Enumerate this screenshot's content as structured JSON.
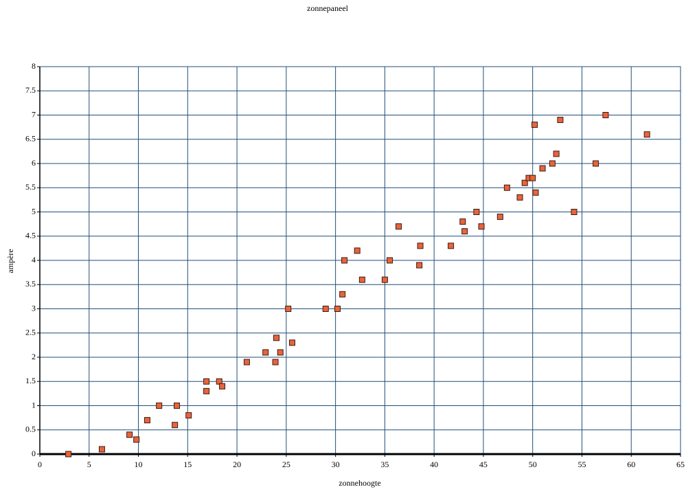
{
  "chart_data": {
    "type": "scatter",
    "title": "zonnepaneel",
    "x_label": "zonnehoogte",
    "y_label": "ampère",
    "series": [
      {
        "name": "ampère",
        "color": "#e8643c",
        "x": [
          2.9,
          6.3,
          9.1,
          9.8,
          10.9,
          12.1,
          13.9,
          13.7,
          15.1,
          16.9,
          16.9,
          18.2,
          18.5,
          21.0,
          22.9,
          23.9,
          24.0,
          24.4,
          25.2,
          25.6,
          29.0,
          30.2,
          30.7,
          30.9,
          32.2,
          32.7,
          35.0,
          35.5,
          36.4,
          38.5,
          38.6,
          41.7,
          42.9,
          43.1,
          44.3,
          44.8,
          46.7,
          47.4,
          48.7,
          49.2,
          49.6,
          50.0,
          50.2,
          50.3,
          51.0,
          52.0,
          52.4,
          52.8,
          54.2,
          56.4,
          57.4,
          61.6
        ],
        "values": [
          0,
          0.1,
          0.4,
          0.3,
          0.7,
          1.0,
          1.0,
          0.6,
          0.8,
          1.5,
          1.3,
          1.5,
          1.4,
          1.9,
          2.1,
          1.9,
          2.4,
          2.1,
          3.0,
          2.3,
          3.0,
          3.0,
          3.3,
          4.0,
          4.2,
          3.6,
          3.6,
          4.0,
          4.7,
          3.9,
          4.3,
          4.3,
          4.8,
          4.6,
          5.0,
          4.7,
          4.9,
          5.5,
          5.3,
          5.6,
          5.7,
          5.7,
          6.8,
          5.4,
          5.9,
          6.0,
          6.2,
          6.9,
          5.0,
          6.0,
          7.0,
          6.6
        ]
      }
    ],
    "xlim": [
      0,
      65
    ],
    "xticks": [
      0,
      5,
      10,
      15,
      20,
      25,
      30,
      35,
      40,
      45,
      50,
      55,
      60,
      65
    ],
    "ylim": [
      0,
      8
    ],
    "yticks": [
      0,
      0.5,
      1,
      1.5,
      2,
      2.5,
      3,
      3.5,
      4,
      4.5,
      5,
      5.5,
      6,
      6.5,
      7,
      7.5,
      8
    ],
    "grid": true,
    "grid_color": "#1f4e79"
  }
}
